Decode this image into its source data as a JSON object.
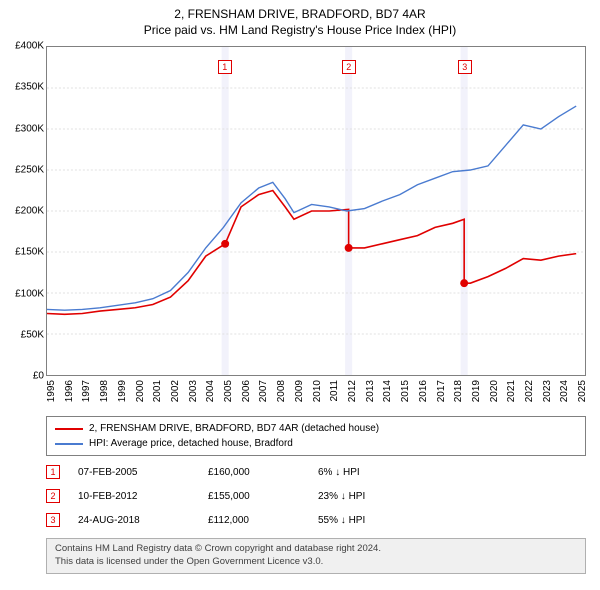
{
  "title": {
    "line1": "2, FRENSHAM DRIVE, BRADFORD, BD7 4AR",
    "line2": "Price paid vs. HM Land Registry's House Price Index (HPI)",
    "fontsize": 12,
    "color": "#000000"
  },
  "chart": {
    "type": "line",
    "background_color": "#ffffff",
    "border_color": "#808080",
    "grid_color": "#e0e0e0",
    "xlim": [
      1995,
      2025.5
    ],
    "ylim": [
      0,
      400000
    ],
    "ytick_step": 50000,
    "yticks": [
      "£0",
      "£50K",
      "£100K",
      "£150K",
      "£200K",
      "£250K",
      "£300K",
      "£350K",
      "£400K"
    ],
    "xticks": [
      1995,
      1996,
      1997,
      1998,
      1999,
      2000,
      2001,
      2002,
      2003,
      2004,
      2005,
      2006,
      2007,
      2008,
      2009,
      2010,
      2011,
      2012,
      2013,
      2014,
      2015,
      2016,
      2017,
      2018,
      2019,
      2020,
      2021,
      2022,
      2023,
      2024,
      2025
    ],
    "label_fontsize": 10,
    "event_band_color": "#e8e8f8",
    "events": [
      {
        "n": "1",
        "x": 2005.1,
        "band": [
          2004.9,
          2005.3
        ]
      },
      {
        "n": "2",
        "x": 2012.1,
        "band": [
          2011.9,
          2012.3
        ]
      },
      {
        "n": "3",
        "x": 2018.65,
        "band": [
          2018.45,
          2018.85
        ]
      }
    ],
    "series": [
      {
        "name": "price_paid",
        "color": "#e00000",
        "line_width": 1.6,
        "label": "2, FRENSHAM DRIVE, BRADFORD, BD7 4AR (detached house)",
        "points": [
          [
            1995,
            75000
          ],
          [
            1996,
            74000
          ],
          [
            1997,
            75000
          ],
          [
            1998,
            78000
          ],
          [
            1999,
            80000
          ],
          [
            2000,
            82000
          ],
          [
            2001,
            86000
          ],
          [
            2002,
            95000
          ],
          [
            2003,
            115000
          ],
          [
            2004,
            145000
          ],
          [
            2005.1,
            160000
          ],
          [
            2005.5,
            180000
          ],
          [
            2006,
            205000
          ],
          [
            2007,
            220000
          ],
          [
            2007.8,
            225000
          ],
          [
            2008.5,
            205000
          ],
          [
            2009,
            190000
          ],
          [
            2010,
            200000
          ],
          [
            2011,
            200000
          ],
          [
            2012.1,
            202000
          ],
          [
            2012.1,
            155000
          ],
          [
            2013,
            155000
          ],
          [
            2014,
            160000
          ],
          [
            2015,
            165000
          ],
          [
            2016,
            170000
          ],
          [
            2017,
            180000
          ],
          [
            2018,
            185000
          ],
          [
            2018.65,
            190000
          ],
          [
            2018.65,
            112000
          ],
          [
            2019,
            112000
          ],
          [
            2020,
            120000
          ],
          [
            2021,
            130000
          ],
          [
            2022,
            142000
          ],
          [
            2023,
            140000
          ],
          [
            2024,
            145000
          ],
          [
            2025,
            148000
          ]
        ],
        "markers": [
          [
            2005.1,
            160000
          ],
          [
            2012.1,
            155000
          ],
          [
            2018.65,
            112000
          ]
        ],
        "marker_color": "#e00000",
        "marker_size": 4
      },
      {
        "name": "hpi",
        "color": "#4a7bd0",
        "line_width": 1.4,
        "label": "HPI: Average price, detached house, Bradford",
        "points": [
          [
            1995,
            80000
          ],
          [
            1996,
            79000
          ],
          [
            1997,
            80000
          ],
          [
            1998,
            82000
          ],
          [
            1999,
            85000
          ],
          [
            2000,
            88000
          ],
          [
            2001,
            93000
          ],
          [
            2002,
            103000
          ],
          [
            2003,
            125000
          ],
          [
            2004,
            155000
          ],
          [
            2005,
            180000
          ],
          [
            2006,
            210000
          ],
          [
            2007,
            228000
          ],
          [
            2007.8,
            235000
          ],
          [
            2008.5,
            215000
          ],
          [
            2009,
            198000
          ],
          [
            2010,
            208000
          ],
          [
            2011,
            205000
          ],
          [
            2012,
            200000
          ],
          [
            2013,
            203000
          ],
          [
            2014,
            212000
          ],
          [
            2015,
            220000
          ],
          [
            2016,
            232000
          ],
          [
            2017,
            240000
          ],
          [
            2018,
            248000
          ],
          [
            2019,
            250000
          ],
          [
            2020,
            255000
          ],
          [
            2021,
            280000
          ],
          [
            2022,
            305000
          ],
          [
            2023,
            300000
          ],
          [
            2024,
            315000
          ],
          [
            2025,
            328000
          ]
        ]
      }
    ]
  },
  "legend": {
    "border_color": "#808080",
    "fontsize": 10
  },
  "sales": [
    {
      "n": "1",
      "date": "07-FEB-2005",
      "price": "£160,000",
      "diff": "6% ↓ HPI"
    },
    {
      "n": "2",
      "date": "10-FEB-2012",
      "price": "£155,000",
      "diff": "23% ↓ HPI"
    },
    {
      "n": "3",
      "date": "24-AUG-2018",
      "price": "£112,000",
      "diff": "55% ↓ HPI"
    }
  ],
  "footer": {
    "line1": "Contains HM Land Registry data © Crown copyright and database right 2024.",
    "line2": "This data is licensed under the Open Government Licence v3.0.",
    "background_color": "#f0f0f0",
    "border_color": "#b0b0b0",
    "color": "#404040",
    "fontsize": 9.5
  }
}
